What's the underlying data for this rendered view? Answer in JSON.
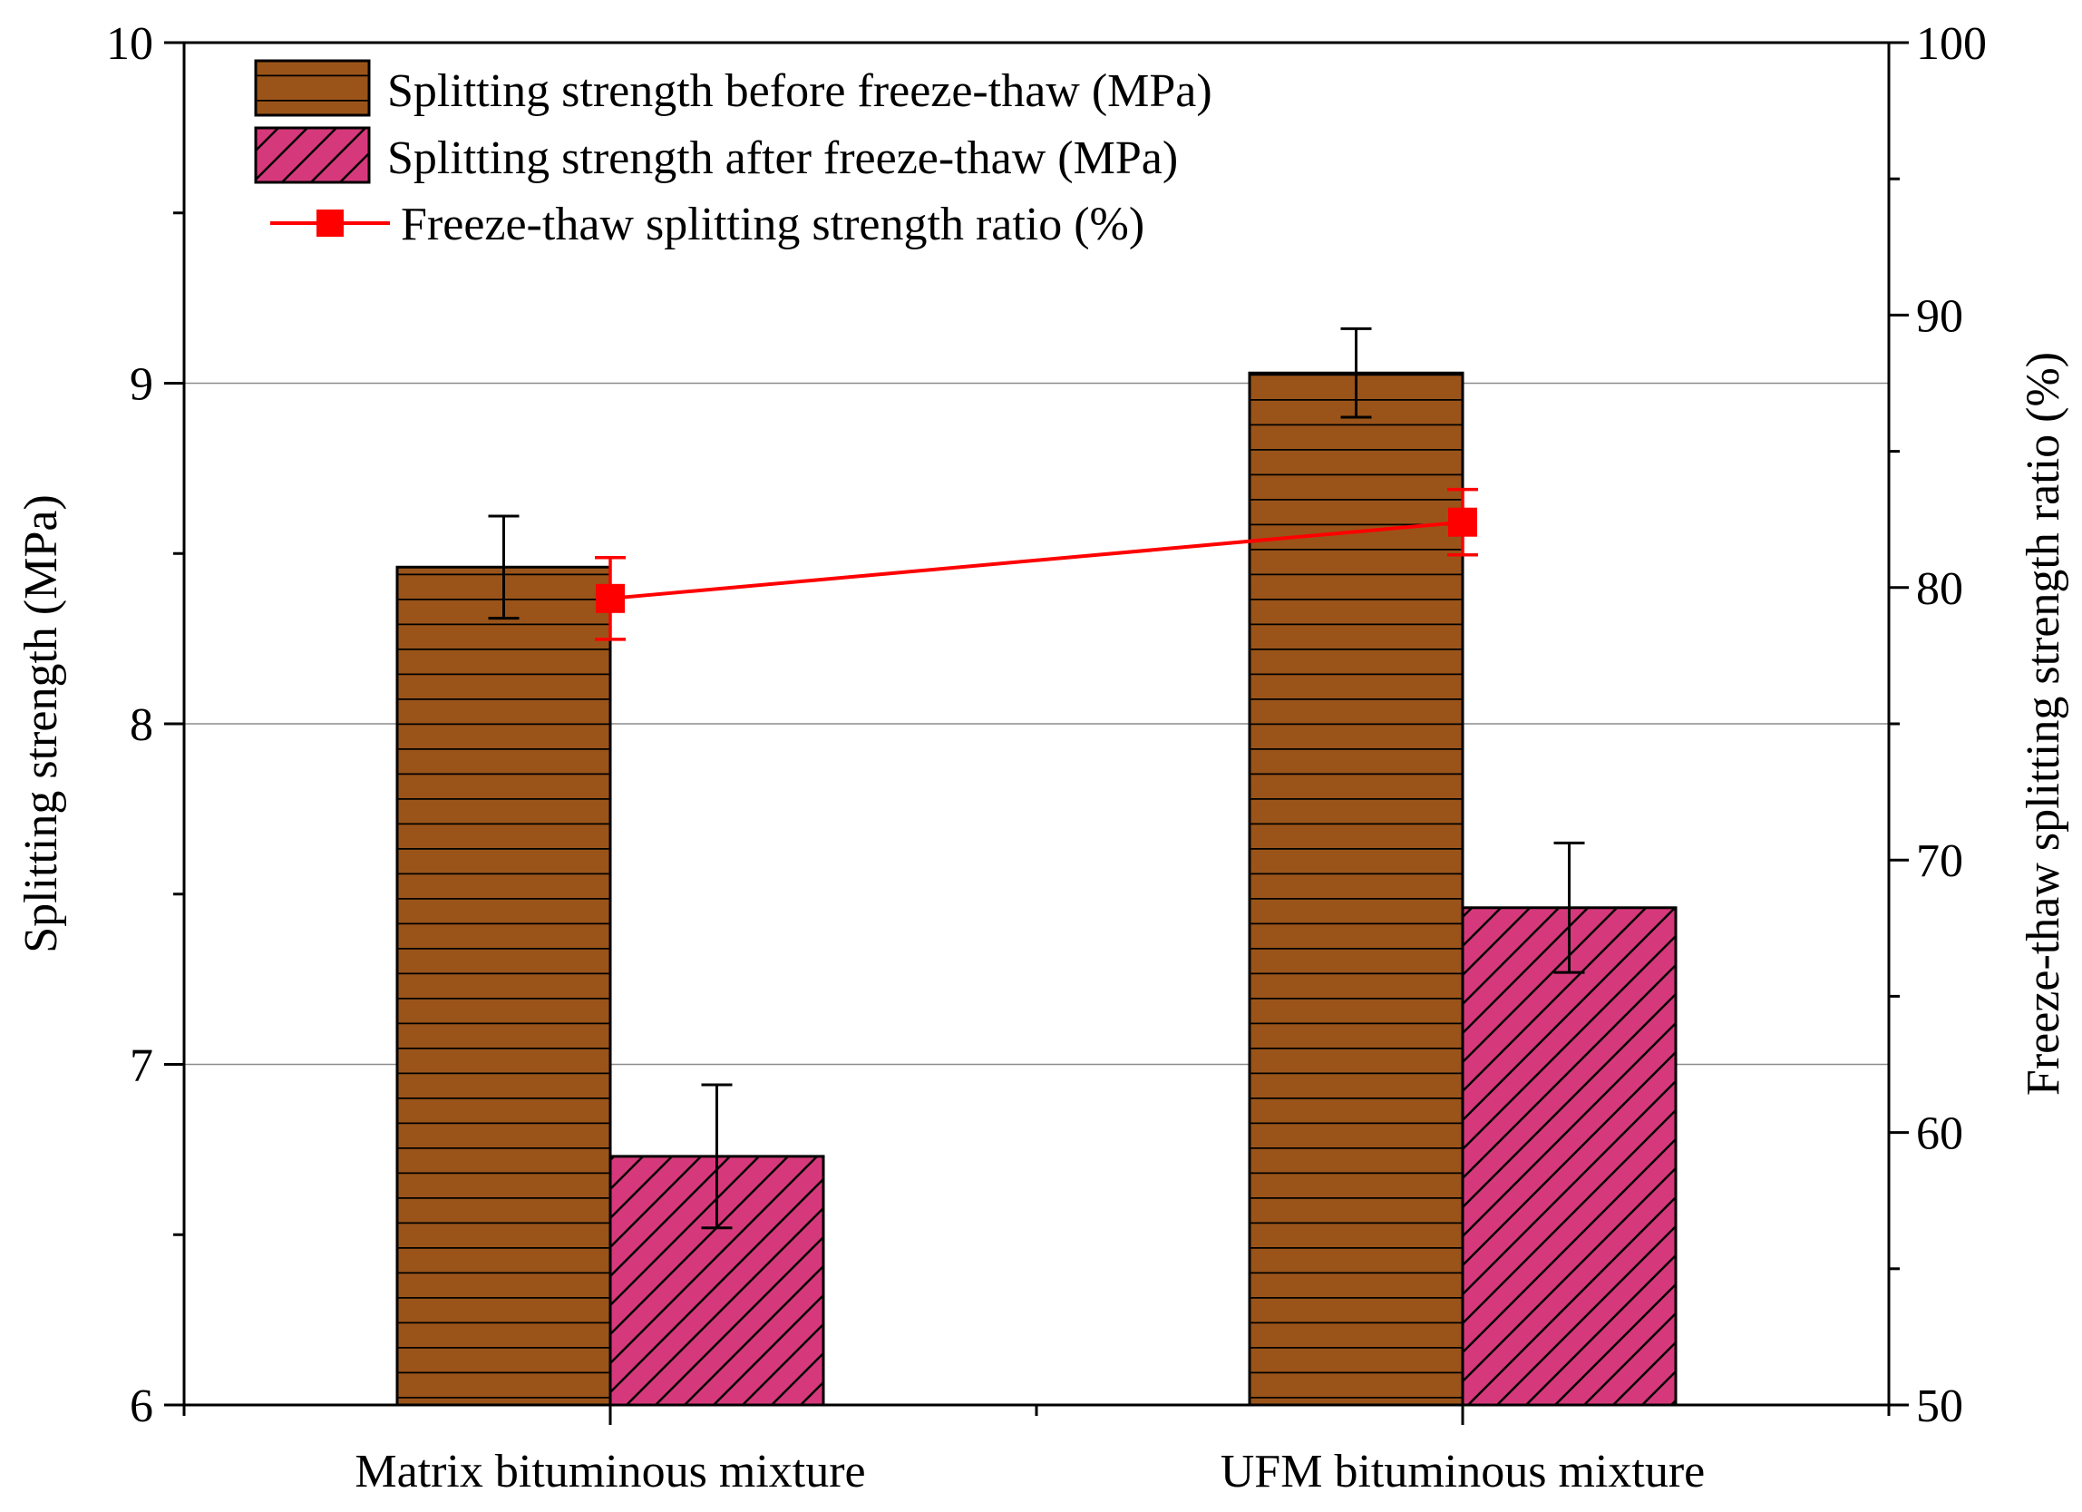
{
  "chart_data": {
    "type": "bar",
    "categories": [
      "Matrix bituminous mixture",
      "UFM bituminous mixture"
    ],
    "series": [
      {
        "name": "Splitting strength before freeze-thaw (MPa)",
        "axis": "left",
        "values": [
          8.46,
          9.03
        ],
        "errors": [
          0.15,
          0.13
        ],
        "color": "#9a5419",
        "pattern": "horizontal-lines"
      },
      {
        "name": "Splitting strength after freeze-thaw (MPa)",
        "axis": "left",
        "values": [
          6.73,
          7.46
        ],
        "errors": [
          0.21,
          0.19
        ],
        "color": "#d6397b",
        "pattern": "diagonal-hatch"
      },
      {
        "name": "Freeze-thaw splitting strength ratio (%)",
        "axis": "right",
        "type": "line",
        "values": [
          79.6,
          82.4
        ],
        "errors": [
          1.5,
          1.2
        ],
        "color": "#ff0000"
      }
    ],
    "ylabel": "Splitting strength (MPa)",
    "ylim": [
      6,
      10
    ],
    "yticks": [
      "6",
      "7",
      "8",
      "9",
      "10"
    ],
    "y2label": "Freeze-thaw splitting strength ratio (%)",
    "y2lim": [
      50,
      100
    ],
    "y2ticks": [
      "50",
      "60",
      "70",
      "80",
      "90",
      "100"
    ],
    "grid": true,
    "legend": "top-left"
  }
}
